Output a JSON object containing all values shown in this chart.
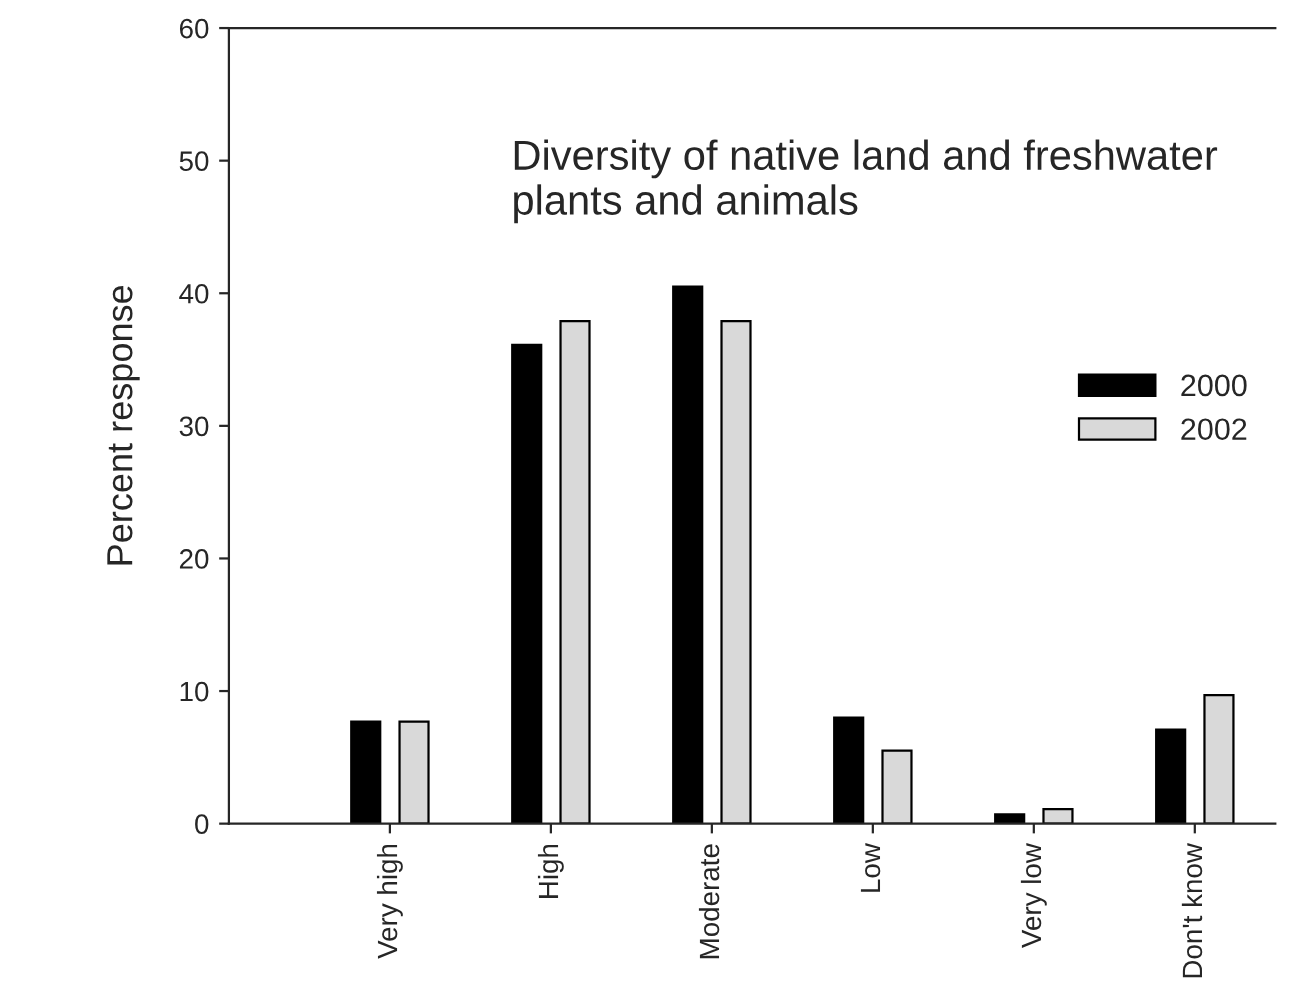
{
  "chart_data": {
    "type": "bar",
    "title": "Diversity of native land and freshwater\nplants and animals",
    "ylabel": "Percent response",
    "categories": [
      "Very high",
      "High",
      "Moderate",
      "Low",
      "Very low",
      "Don't know"
    ],
    "series": [
      {
        "name": "2000",
        "color": "#000000",
        "values": [
          7.7,
          36.1,
          40.5,
          8.0,
          0.7,
          7.1
        ]
      },
      {
        "name": "2002",
        "color": "#d9d9d9",
        "values": [
          7.7,
          37.9,
          37.9,
          5.5,
          1.1,
          9.7
        ]
      }
    ],
    "ylim": [
      0,
      60
    ],
    "yticks": [
      0,
      10,
      20,
      30,
      40,
      50,
      60
    ],
    "grid": false,
    "legend": "right"
  }
}
